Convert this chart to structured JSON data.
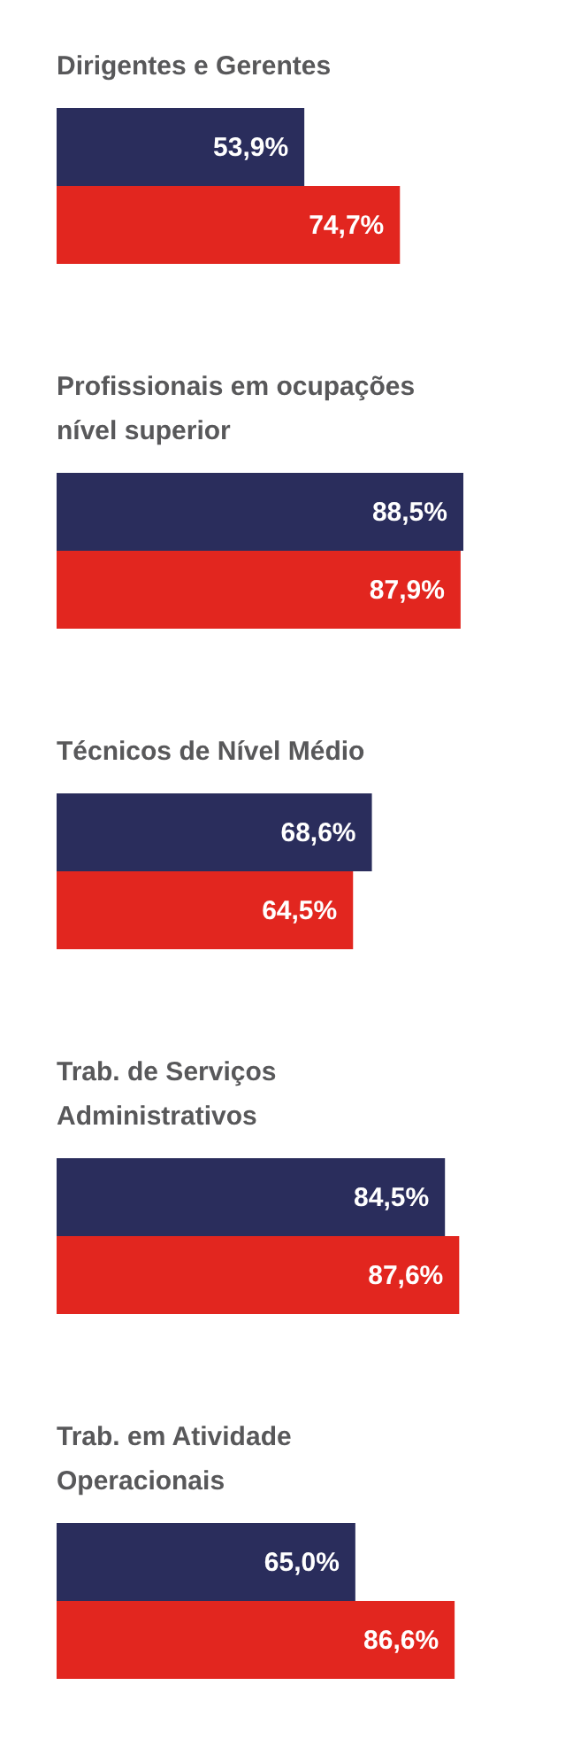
{
  "chart_data": [
    {
      "type": "bar",
      "orientation": "horizontal",
      "title": "Dirigentes e Gerentes",
      "categories": [
        null
      ],
      "series": [
        {
          "color": "#2a2d5c",
          "values": [
            53.9
          ],
          "value_labels": [
            "53,9%"
          ]
        },
        {
          "color": "#e2261f",
          "values": [
            74.7
          ],
          "value_labels": [
            "74,7%"
          ]
        }
      ],
      "tick_labels": false
    },
    {
      "type": "bar",
      "orientation": "horizontal",
      "title": "Profissionais em ocupações nível superior",
      "categories": [
        null
      ],
      "series": [
        {
          "color": "#2a2d5c",
          "values": [
            88.5
          ],
          "value_labels": [
            "88,5%"
          ]
        },
        {
          "color": "#e2261f",
          "values": [
            87.9
          ],
          "value_labels": [
            "87,9%"
          ]
        }
      ],
      "tick_labels": false
    },
    {
      "type": "bar",
      "orientation": "horizontal",
      "title": "Técnicos de Nível Médio",
      "categories": [
        null
      ],
      "series": [
        {
          "color": "#2a2d5c",
          "values": [
            68.6
          ],
          "value_labels": [
            "68,6%"
          ]
        },
        {
          "color": "#e2261f",
          "values": [
            64.5
          ],
          "value_labels": [
            "64,5%"
          ]
        }
      ],
      "tick_labels": false
    },
    {
      "type": "bar",
      "orientation": "horizontal",
      "title": "Trab. de Serviços Administrativos",
      "categories": [
        null
      ],
      "series": [
        {
          "color": "#2a2d5c",
          "values": [
            84.5
          ],
          "value_labels": [
            "84,5%"
          ]
        },
        {
          "color": "#e2261f",
          "values": [
            87.6
          ],
          "value_labels": [
            "87,6%"
          ]
        }
      ],
      "tick_labels": false
    },
    {
      "type": "bar",
      "orientation": "horizontal",
      "title": "Trab. em Atividade Operacionais",
      "categories": [
        null
      ],
      "series": [
        {
          "color": "#2a2d5c",
          "values": [
            65.0
          ],
          "value_labels": [
            "65,0%"
          ]
        },
        {
          "color": "#e2261f",
          "values": [
            86.6
          ],
          "value_labels": [
            "86,6%"
          ]
        }
      ],
      "tick_labels": false
    }
  ]
}
